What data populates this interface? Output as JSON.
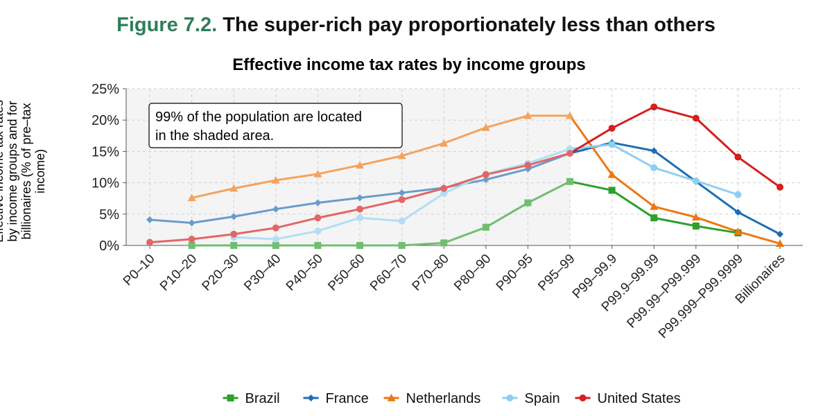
{
  "figure": {
    "label": "Figure 7.2.",
    "headline": "The super-rich pay proportionately less than others"
  },
  "colors": {
    "Brazil": "#2ca02c",
    "France": "#1f6db3",
    "Netherlands": "#ee7711",
    "Spain": "#8ecff0",
    "United States": "#d61e1e",
    "shade": "#f4f4f4",
    "grid": "#d0d0d0"
  },
  "chart_data": {
    "type": "line",
    "title": "Effective income tax rates by income groups",
    "xlabel": "",
    "ylabel": "Effective income tax rates by income groups  and for billionaires (% of pre–tax income)",
    "ylim": [
      0,
      25
    ],
    "yticks": [
      "0%",
      "5%",
      "10%",
      "15%",
      "20%",
      "25%"
    ],
    "grid": true,
    "legend_position": "bottom",
    "categories": [
      "P0–10",
      "P10–20",
      "P20–30",
      "P30–40",
      "P40–50",
      "P50–60",
      "P60–70",
      "P70–80",
      "P80–90",
      "P90–95",
      "P95–99",
      "P99–99.9",
      "P99.9–99.99",
      "P99.99–P99.999",
      "P99.999–P99.9999",
      "Billionaires"
    ],
    "shaded_region": {
      "from": "P0–10",
      "to": "P95–99"
    },
    "annotation": "99% of the population are located in the shaded area.",
    "series": [
      {
        "name": "Brazil",
        "marker": "square",
        "values": [
          null,
          0,
          0,
          0,
          0,
          0,
          0,
          0.4,
          2.9,
          6.8,
          10.2,
          8.8,
          4.4,
          3.1,
          2.0,
          null
        ]
      },
      {
        "name": "France",
        "marker": "diamond",
        "values": [
          4.1,
          3.6,
          4.6,
          5.8,
          6.8,
          7.6,
          8.4,
          9.2,
          10.5,
          12.2,
          14.7,
          16.4,
          15.1,
          10.2,
          5.3,
          1.8
        ]
      },
      {
        "name": "Netherlands",
        "marker": "triangle",
        "values": [
          null,
          7.6,
          9.1,
          10.4,
          11.4,
          12.8,
          14.3,
          16.3,
          18.8,
          20.7,
          20.7,
          11.3,
          6.2,
          4.5,
          2.2,
          0.3
        ]
      },
      {
        "name": "Spain",
        "marker": "circle",
        "values": [
          null,
          null,
          1.3,
          1.0,
          2.3,
          4.4,
          3.9,
          8.3,
          11.4,
          13.1,
          15.4,
          16.1,
          12.4,
          10.3,
          8.1,
          null
        ]
      },
      {
        "name": "United States",
        "marker": "circle",
        "values": [
          0.5,
          1.0,
          1.8,
          2.8,
          4.4,
          5.8,
          7.3,
          9.1,
          11.3,
          12.8,
          14.7,
          18.7,
          22.1,
          20.3,
          14.1,
          9.3
        ]
      }
    ]
  }
}
